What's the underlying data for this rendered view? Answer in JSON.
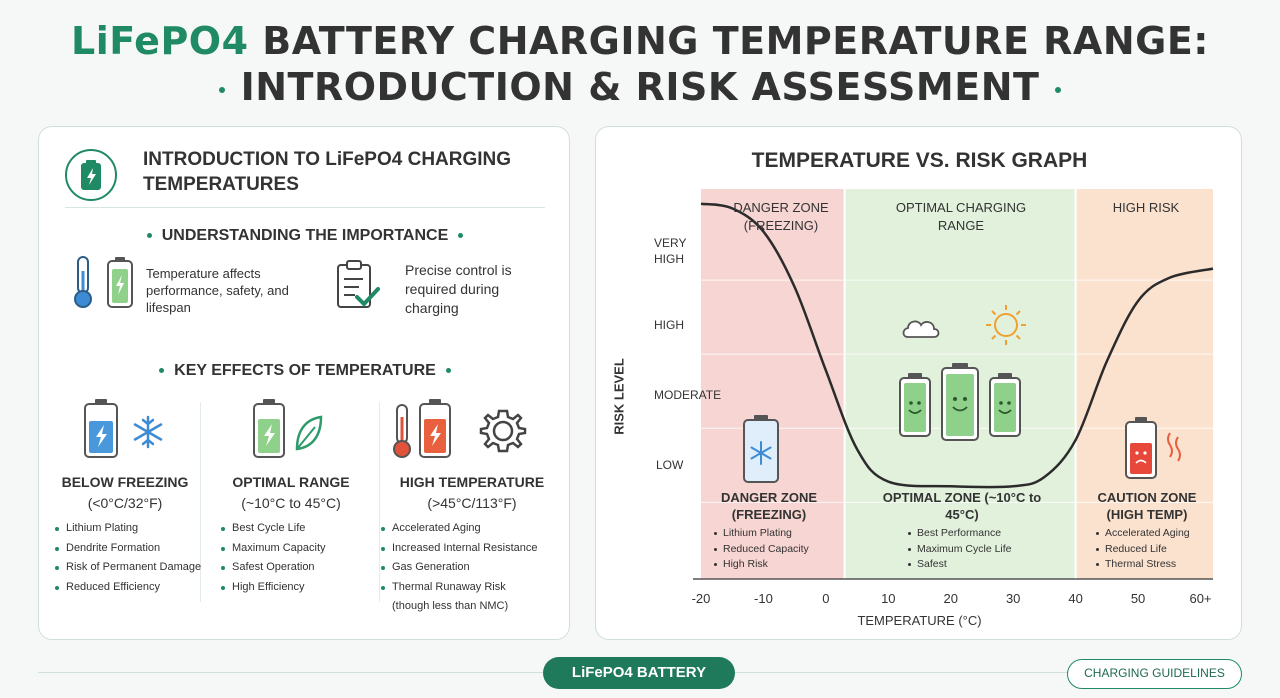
{
  "title": {
    "brand": "LiFePO4",
    "line1_rest": "BATTERY CHARGING TEMPERATURE RANGE:",
    "line2": "INTRODUCTION & RISK ASSESSMENT"
  },
  "colors": {
    "accent": "#1f8a64",
    "danger": "#f6d5d2",
    "optimal": "#e2f1dc",
    "high": "#fbe2cf"
  },
  "left": {
    "intro_title": "INTRODUCTION TO LiFePO4 CHARGING TEMPERATURES",
    "importance": {
      "heading": "UNDERSTANDING THE IMPORTANCE",
      "item1": "Temperature affects performance, safety, and lifespan",
      "item2": "Precise control is required during charging"
    },
    "effects_heading": "KEY EFFECTS OF TEMPERATURE",
    "columns": [
      {
        "title": "BELOW FREEZING",
        "range": "(<0°C/32°F)",
        "items": [
          "Lithium Plating",
          "Dendrite Formation",
          "Risk of Permanent Damage",
          "Reduced Efficiency"
        ]
      },
      {
        "title": "OPTIMAL RANGE",
        "range": "(~10°C to 45°C)",
        "items": [
          "Best Cycle Life",
          "Maximum Capacity",
          "Safest Operation",
          "High Efficiency"
        ]
      },
      {
        "title": "HIGH TEMPERATURE",
        "range": "(>45°C/113°F)",
        "items": [
          "Accelerated Aging",
          "Increased Internal Resistance",
          "Gas Generation",
          "Thermal Runaway Risk",
          "(though less than NMC)"
        ]
      }
    ]
  },
  "chart_data": {
    "type": "line",
    "title": "TEMPERATURE VS. RISK GRAPH",
    "xlabel": "TEMPERATURE (°C)",
    "ylabel": "RISK LEVEL",
    "x_ticks": [
      "-20",
      "-10",
      "0",
      "10",
      "20",
      "30",
      "40",
      "50",
      "60+"
    ],
    "y_ticks": [
      "VERY HIGH",
      "HIGH",
      "MODERATE",
      "LOW"
    ],
    "zones": [
      {
        "top": "DANGER ZONE (FREEZING)",
        "bottom_title": "DANGER ZONE (FREEZING)",
        "items": [
          "Lithium Plating",
          "Reduced Capacity",
          "High Risk"
        ],
        "from": -20,
        "to": 3
      },
      {
        "top": "OPTIMAL CHARGING RANGE",
        "bottom_title": "OPTIMAL ZONE (~10°C to 45°C)",
        "items": [
          "Best Performance",
          "Maximum Cycle Life",
          "Safest"
        ],
        "from": 3,
        "to": 40
      },
      {
        "top": "HIGH RISK",
        "bottom_title": "CAUTION ZONE (HIGH TEMP)",
        "items": [
          "Accelerated Aging",
          "Reduced Life",
          "Thermal Stress"
        ],
        "from": 40,
        "to": 62
      }
    ],
    "series": [
      {
        "x": [
          -20,
          -15,
          -10,
          -5,
          0,
          5,
          10,
          20,
          30,
          35,
          40,
          45,
          50,
          55,
          62
        ],
        "y": [
          3.9,
          3.85,
          3.6,
          3.0,
          2.1,
          1.25,
          0.9,
          0.85,
          0.85,
          0.95,
          1.35,
          2.2,
          2.85,
          3.1,
          3.2
        ]
      }
    ],
    "ylim": [
      0,
      4
    ],
    "grid": true
  },
  "footer": {
    "badge": "LiFePO4 BATTERY",
    "pill": "CHARGING GUIDELINES"
  }
}
